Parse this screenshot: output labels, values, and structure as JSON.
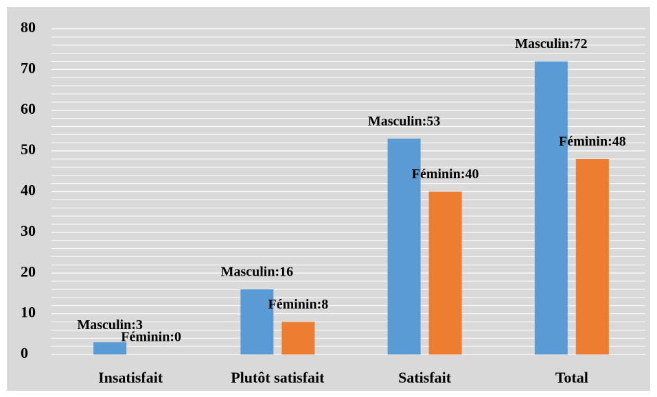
{
  "chart_data": {
    "type": "bar",
    "categories": [
      "Insatisfait",
      "Plutôt satisfait",
      "Satisfait",
      "Total"
    ],
    "series": [
      {
        "name": "Masculin",
        "color": "#5b9bd5",
        "values": [
          3,
          16,
          53,
          72
        ],
        "value_labels": [
          "Masculin:3",
          "Masculin:16",
          "Masculin:53",
          "Masculin:72"
        ]
      },
      {
        "name": "Féminin",
        "color": "#ed7d31",
        "values": [
          0,
          8,
          40,
          48
        ],
        "value_labels": [
          "Féminin:0",
          "Féminin:8",
          "Féminin:40",
          "Féminin:48"
        ]
      }
    ],
    "ylim": [
      0,
      80
    ],
    "yticks": [
      0,
      10,
      20,
      30,
      40,
      50,
      60,
      70,
      80
    ],
    "grid": true
  }
}
